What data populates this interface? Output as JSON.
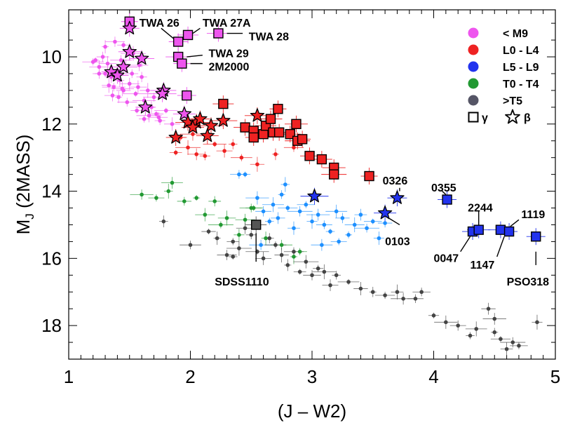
{
  "chart_data": {
    "type": "scatter",
    "title": "",
    "xlabel": "(J – W2)",
    "ylabel_main": "M",
    "ylabel_sub": "J",
    "ylabel_rest": " (2MASS)",
    "xlim": [
      1,
      5
    ],
    "ylim": [
      19,
      8.6
    ],
    "y_inverted": true,
    "xticks": [
      1,
      2,
      3,
      4,
      5
    ],
    "yticks": [
      10,
      12,
      14,
      16,
      18
    ],
    "legend_position": "top-right",
    "legend": [
      {
        "label": "< M9",
        "color": "#ee55ee"
      },
      {
        "label": "L0 - L4",
        "color": "#ee2222"
      },
      {
        "label": "L5 - L9",
        "color": "#2233ee"
      },
      {
        "label": "T0 - T4",
        "color": "#229933"
      },
      {
        "label": ">T5",
        "color": "#555566"
      }
    ],
    "legend_markers": {
      "gamma": "γ",
      "beta": "β"
    },
    "series": [
      {
        "name": "< M9",
        "color": "#ee55ee",
        "points": [
          [
            1.22,
            10.1
          ],
          [
            1.25,
            10.3
          ],
          [
            1.28,
            10.0
          ],
          [
            1.3,
            10.5
          ],
          [
            1.32,
            10.2
          ],
          [
            1.35,
            10.6
          ],
          [
            1.37,
            10.9
          ],
          [
            1.4,
            10.4
          ],
          [
            1.42,
            10.7
          ],
          [
            1.43,
            10.1
          ],
          [
            1.45,
            11.0
          ],
          [
            1.47,
            10.3
          ],
          [
            1.5,
            10.8
          ],
          [
            1.52,
            10.5
          ],
          [
            1.55,
            11.1
          ],
          [
            1.57,
            10.9
          ],
          [
            1.6,
            10.6
          ],
          [
            1.62,
            11.3
          ],
          [
            1.65,
            11.0
          ],
          [
            1.68,
            11.5
          ],
          [
            1.7,
            11.2
          ],
          [
            1.72,
            11.7
          ],
          [
            1.3,
            9.7
          ],
          [
            1.38,
            9.55
          ],
          [
            1.45,
            9.65
          ],
          [
            1.53,
            9.9
          ],
          [
            1.58,
            10.25
          ],
          [
            1.75,
            11.9
          ],
          [
            1.8,
            11.6
          ],
          [
            1.85,
            12.0
          ],
          [
            1.25,
            10.5
          ],
          [
            1.2,
            10.15
          ],
          [
            1.33,
            10.85
          ],
          [
            1.41,
            11.2
          ],
          [
            1.48,
            11.35
          ],
          [
            1.56,
            11.6
          ],
          [
            1.66,
            11.75
          ],
          [
            1.74,
            11.8
          ],
          [
            1.62,
            11.85
          ],
          [
            1.44,
            10.95
          ],
          [
            1.36,
            11.15
          ]
        ]
      },
      {
        "name": "L0 - L4",
        "color": "#ee2222",
        "points": [
          [
            1.92,
            12.4
          ],
          [
            1.98,
            12.7
          ],
          [
            2.05,
            12.9
          ],
          [
            2.12,
            12.95
          ],
          [
            2.2,
            12.6
          ],
          [
            2.28,
            12.8
          ],
          [
            2.35,
            12.6
          ],
          [
            2.42,
            13.0
          ],
          [
            2.55,
            13.2
          ],
          [
            2.7,
            12.9
          ],
          [
            2.85,
            12.7
          ],
          [
            1.88,
            12.85
          ],
          [
            2.02,
            12.3
          ]
        ]
      },
      {
        "name": "L5 - L9",
        "color": "#1e90ff",
        "points": [
          [
            2.4,
            13.5
          ],
          [
            2.45,
            13.5
          ],
          [
            2.55,
            14.2
          ],
          [
            2.6,
            14.6
          ],
          [
            2.65,
            14.9
          ],
          [
            2.68,
            14.4
          ],
          [
            2.72,
            14.8
          ],
          [
            2.75,
            14.1
          ],
          [
            2.8,
            14.5
          ],
          [
            2.85,
            15.1
          ],
          [
            2.9,
            14.6
          ],
          [
            2.95,
            14.4
          ],
          [
            3.0,
            14.9
          ],
          [
            3.05,
            14.7
          ],
          [
            3.1,
            15.0
          ],
          [
            3.15,
            15.2
          ],
          [
            3.2,
            14.6
          ],
          [
            3.25,
            14.8
          ],
          [
            3.3,
            15.3
          ],
          [
            3.35,
            15.0
          ],
          [
            3.4,
            14.7
          ],
          [
            3.45,
            15.1
          ],
          [
            3.5,
            14.9
          ],
          [
            3.55,
            15.4
          ],
          [
            2.58,
            15.6
          ],
          [
            3.22,
            15.5
          ],
          [
            2.78,
            13.8
          ],
          [
            3.08,
            15.6
          ],
          [
            3.6,
            14.95
          ]
        ]
      },
      {
        "name": "T0 - T4",
        "color": "#229933",
        "points": [
          [
            1.6,
            14.1
          ],
          [
            1.72,
            14.2
          ],
          [
            1.82,
            14.0
          ],
          [
            1.85,
            13.75
          ],
          [
            1.95,
            14.3
          ],
          [
            2.05,
            14.2
          ],
          [
            2.12,
            14.7
          ],
          [
            2.2,
            14.3
          ],
          [
            2.25,
            15.0
          ],
          [
            2.3,
            14.8
          ],
          [
            2.4,
            15.3
          ],
          [
            2.5,
            14.5
          ],
          [
            2.52,
            14.5
          ],
          [
            2.62,
            15.4
          ],
          [
            2.75,
            15.6
          ],
          [
            2.9,
            15.8
          ],
          [
            2.85,
            15.95
          ],
          [
            2.45,
            14.85
          ]
        ]
      },
      {
        "name": ">T5",
        "color": "#444444",
        "points": [
          [
            1.78,
            14.9
          ],
          [
            2.0,
            15.6
          ],
          [
            2.15,
            15.2
          ],
          [
            2.22,
            15.4
          ],
          [
            2.3,
            15.9
          ],
          [
            2.35,
            15.5
          ],
          [
            2.4,
            15.7
          ],
          [
            2.45,
            15.1
          ],
          [
            2.5,
            15.3
          ],
          [
            2.55,
            15.8
          ],
          [
            2.6,
            16.0
          ],
          [
            2.65,
            15.4
          ],
          [
            2.7,
            15.6
          ],
          [
            2.75,
            15.9
          ],
          [
            2.8,
            16.2
          ],
          [
            2.85,
            15.8
          ],
          [
            2.9,
            16.4
          ],
          [
            2.95,
            16.1
          ],
          [
            3.0,
            16.5
          ],
          [
            3.05,
            16.3
          ],
          [
            3.1,
            16.4
          ],
          [
            3.15,
            16.8
          ],
          [
            3.2,
            16.5
          ],
          [
            3.3,
            16.7
          ],
          [
            3.4,
            16.9
          ],
          [
            3.5,
            17.0
          ],
          [
            3.6,
            17.1
          ],
          [
            3.7,
            17.0
          ],
          [
            3.75,
            17.2
          ],
          [
            3.9,
            17.0
          ],
          [
            4.0,
            17.7
          ],
          [
            4.1,
            17.9
          ],
          [
            4.2,
            18.0
          ],
          [
            4.3,
            18.3
          ],
          [
            4.35,
            18.1
          ],
          [
            4.45,
            17.5
          ],
          [
            4.5,
            18.2
          ],
          [
            4.55,
            18.4
          ],
          [
            4.6,
            18.7
          ],
          [
            4.65,
            18.5
          ],
          [
            4.7,
            18.6
          ],
          [
            4.85,
            17.9
          ],
          [
            4.5,
            17.8
          ],
          [
            3.85,
            17.2
          ],
          [
            2.35,
            15.95
          ]
        ]
      }
    ],
    "gamma_points": [
      {
        "x": 1.5,
        "y": 8.95,
        "color": "#ee55ee"
      },
      {
        "x": 1.9,
        "y": 9.55,
        "color": "#ee55ee"
      },
      {
        "x": 1.98,
        "y": 9.35,
        "color": "#ee55ee"
      },
      {
        "x": 2.23,
        "y": 9.3,
        "color": "#ee55ee"
      },
      {
        "x": 1.9,
        "y": 10.0,
        "color": "#ee55ee"
      },
      {
        "x": 1.93,
        "y": 10.2,
        "color": "#ee55ee"
      },
      {
        "x": 1.97,
        "y": 11.15,
        "color": "#ee55ee"
      },
      {
        "x": 2.27,
        "y": 11.4,
        "color": "#ee2222"
      },
      {
        "x": 2.45,
        "y": 12.1,
        "color": "#ee2222"
      },
      {
        "x": 2.52,
        "y": 12.2,
        "color": "#ee2222"
      },
      {
        "x": 2.52,
        "y": 12.4,
        "color": "#ee2222"
      },
      {
        "x": 2.6,
        "y": 12.3,
        "color": "#ee2222"
      },
      {
        "x": 2.62,
        "y": 12.05,
        "color": "#ee2222"
      },
      {
        "x": 2.66,
        "y": 11.85,
        "color": "#ee2222"
      },
      {
        "x": 2.68,
        "y": 12.25,
        "color": "#ee2222"
      },
      {
        "x": 2.72,
        "y": 11.55,
        "color": "#ee2222"
      },
      {
        "x": 2.73,
        "y": 12.25,
        "color": "#ee2222"
      },
      {
        "x": 2.82,
        "y": 12.3,
        "color": "#ee2222"
      },
      {
        "x": 2.87,
        "y": 12.0,
        "color": "#ee2222"
      },
      {
        "x": 2.88,
        "y": 12.5,
        "color": "#ee2222"
      },
      {
        "x": 2.92,
        "y": 12.45,
        "color": "#ee2222"
      },
      {
        "x": 2.98,
        "y": 12.95,
        "color": "#ee2222"
      },
      {
        "x": 3.08,
        "y": 13.05,
        "color": "#ee2222"
      },
      {
        "x": 3.18,
        "y": 13.3,
        "color": "#ee2222"
      },
      {
        "x": 3.18,
        "y": 13.5,
        "color": "#ee2222"
      },
      {
        "x": 3.47,
        "y": 13.55,
        "color": "#ee2222"
      },
      {
        "x": 4.11,
        "y": 14.25,
        "color": "#2233ee"
      },
      {
        "x": 4.32,
        "y": 15.2,
        "color": "#2233ee"
      },
      {
        "x": 4.37,
        "y": 15.15,
        "color": "#2233ee"
      },
      {
        "x": 4.55,
        "y": 15.15,
        "color": "#2233ee"
      },
      {
        "x": 4.62,
        "y": 15.2,
        "color": "#2233ee"
      },
      {
        "x": 4.84,
        "y": 15.35,
        "color": "#2233ee"
      },
      {
        "x": 2.54,
        "y": 15.0,
        "color": "#555555"
      }
    ],
    "beta_points": [
      {
        "x": 1.5,
        "y": 9.15,
        "color": "#ee55ee"
      },
      {
        "x": 1.5,
        "y": 9.85,
        "color": "#ee55ee"
      },
      {
        "x": 1.6,
        "y": 10.05,
        "color": "#ee55ee"
      },
      {
        "x": 1.45,
        "y": 10.3,
        "color": "#ee55ee"
      },
      {
        "x": 1.35,
        "y": 10.45,
        "color": "#ee55ee"
      },
      {
        "x": 1.4,
        "y": 10.55,
        "color": "#ee55ee"
      },
      {
        "x": 1.78,
        "y": 11.0,
        "color": "#ee55ee"
      },
      {
        "x": 1.77,
        "y": 11.1,
        "color": "#ee55ee"
      },
      {
        "x": 1.63,
        "y": 11.5,
        "color": "#ee55ee"
      },
      {
        "x": 1.95,
        "y": 11.7,
        "color": "#ee55ee"
      },
      {
        "x": 1.98,
        "y": 11.95,
        "color": "#ee2222"
      },
      {
        "x": 2.05,
        "y": 11.95,
        "color": "#ee2222"
      },
      {
        "x": 2.08,
        "y": 11.85,
        "color": "#ee2222"
      },
      {
        "x": 2.02,
        "y": 12.1,
        "color": "#ee2222"
      },
      {
        "x": 2.17,
        "y": 12.05,
        "color": "#ee2222"
      },
      {
        "x": 2.27,
        "y": 11.9,
        "color": "#ee2222"
      },
      {
        "x": 1.88,
        "y": 12.4,
        "color": "#ee2222"
      },
      {
        "x": 2.14,
        "y": 12.35,
        "color": "#ee2222"
      },
      {
        "x": 2.55,
        "y": 11.75,
        "color": "#ee2222"
      },
      {
        "x": 3.02,
        "y": 14.15,
        "color": "#2233ee"
      },
      {
        "x": 3.7,
        "y": 14.2,
        "color": "#2233ee"
      },
      {
        "x": 3.6,
        "y": 14.65,
        "color": "#2233ee"
      }
    ],
    "annotations": [
      {
        "text": "TWA 26",
        "x": 1.58,
        "y": 9.0,
        "lx1": 1.76,
        "ly1": 9.15,
        "lx2": 1.86,
        "ly2": 9.45
      },
      {
        "text": "TWA 27A",
        "x": 2.1,
        "y": 9.0,
        "lx1": 2.08,
        "ly1": 9.15,
        "lx2": 2.02,
        "ly2": 9.3
      },
      {
        "text": "TWA 28",
        "x": 2.48,
        "y": 9.4,
        "lx1": 2.3,
        "ly1": 9.3,
        "lx2": 2.43,
        "ly2": 9.3
      },
      {
        "text": "TWA 29",
        "x": 2.15,
        "y": 9.9,
        "lx1": 1.97,
        "ly1": 10.0,
        "lx2": 2.1,
        "ly2": 9.95
      },
      {
        "text": "2M2000",
        "x": 2.15,
        "y": 10.3,
        "lx1": 2.0,
        "ly1": 10.2,
        "lx2": 2.1,
        "ly2": 10.2
      },
      {
        "text": "SDSS1110",
        "x": 2.2,
        "y": 16.7,
        "lx1": 2.54,
        "ly1": 15.25,
        "lx2": 2.54,
        "ly2": 16.1
      },
      {
        "text": "0326",
        "x": 3.58,
        "y": 13.7,
        "lx1": 3.72,
        "ly1": 13.9,
        "lx2": 3.72,
        "ly2": 14.0
      },
      {
        "text": "0103",
        "x": 3.6,
        "y": 15.5,
        "lx1": 3.63,
        "ly1": 14.8,
        "lx2": 3.72,
        "ly2": 15.0
      },
      {
        "text": "0355",
        "x": 3.98,
        "y": 13.9,
        "lx1": 4.07,
        "ly1": 14.0,
        "lx2": 4.1,
        "ly2": 14.1
      },
      {
        "text": "2244",
        "x": 4.28,
        "y": 14.5,
        "lx1": 4.37,
        "ly1": 14.6,
        "lx2": 4.37,
        "ly2": 15.0
      },
      {
        "text": "1119",
        "x": 4.72,
        "y": 14.7,
        "lx1": 4.7,
        "ly1": 14.85,
        "lx2": 4.63,
        "ly2": 15.05
      },
      {
        "text": "0047",
        "x": 4.0,
        "y": 16.0,
        "lx1": 4.22,
        "ly1": 15.8,
        "lx2": 4.3,
        "ly2": 15.35
      },
      {
        "text": "1147",
        "x": 4.3,
        "y": 16.2,
        "lx1": 4.52,
        "ly1": 15.95,
        "lx2": 4.58,
        "ly2": 15.35
      },
      {
        "text": "PSO318",
        "x": 4.6,
        "y": 16.7,
        "lx1": 4.84,
        "ly1": 15.8,
        "lx2": 4.84,
        "ly2": 16.2
      }
    ]
  }
}
